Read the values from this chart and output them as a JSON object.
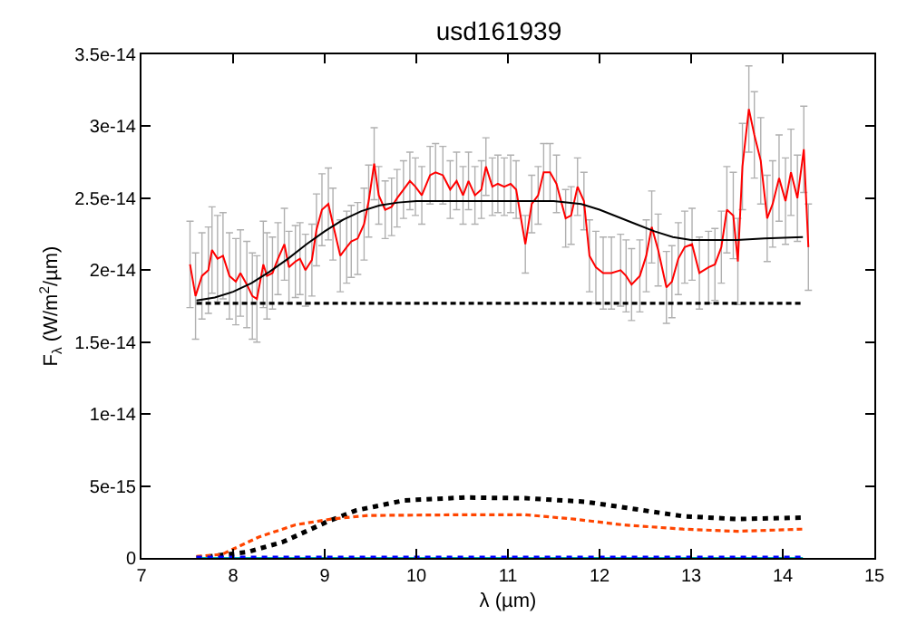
{
  "chart_data": {
    "type": "line",
    "title": "usd161939",
    "xlabel": "λ (µm)",
    "ylabel": "F$_{λ}$ (W/m$^{2}$/µm)",
    "xlim": [
      7,
      15
    ],
    "xticks": [
      7,
      8,
      9,
      10,
      11,
      12,
      13,
      14,
      15
    ],
    "ylim": [
      0,
      3.5e-14
    ],
    "yticks": [
      {
        "value": 0,
        "label": "0"
      },
      {
        "value": 5e-15,
        "label": "5e-15"
      },
      {
        "value": 1e-14,
        "label": "1e-14"
      },
      {
        "value": 1.5e-14,
        "label": "1.5e-14"
      },
      {
        "value": 2e-14,
        "label": "2e-14"
      },
      {
        "value": 2.5e-14,
        "label": "2.5e-14"
      },
      {
        "value": 3e-14,
        "label": "3e-14"
      },
      {
        "value": 3.5e-14,
        "label": "3.5e-14"
      }
    ],
    "marker": "none",
    "series": [
      {
        "color": "#ff0000",
        "line_style": "solid",
        "x": [
          7.53,
          7.59,
          7.66,
          7.73,
          7.77,
          7.83,
          7.89,
          7.96,
          8.03,
          8.08,
          8.15,
          8.21,
          8.26,
          8.33,
          8.37,
          8.43,
          8.49,
          8.56,
          8.61,
          8.68,
          8.73,
          8.79,
          8.86,
          8.91,
          8.97,
          9.04,
          9.09,
          9.17,
          9.24,
          9.29,
          9.36,
          9.43,
          9.48,
          9.54,
          9.59,
          9.66,
          9.73,
          9.79,
          9.86,
          9.93,
          9.99,
          10.06,
          10.15,
          10.21,
          10.29,
          10.37,
          10.44,
          10.51,
          10.57,
          10.64,
          10.71,
          10.76,
          10.83,
          10.89,
          10.96,
          11.03,
          11.09,
          11.19,
          11.26,
          11.33,
          11.39,
          11.46,
          11.53,
          11.63,
          11.69,
          11.76,
          11.83,
          11.89,
          11.96,
          12.04,
          12.13,
          12.23,
          12.29,
          12.35,
          12.44,
          12.51,
          12.57,
          12.64,
          12.73,
          12.79,
          12.86,
          12.93,
          13.01,
          13.09,
          13.19,
          13.26,
          13.33,
          13.39,
          13.46,
          13.51,
          13.56,
          13.63,
          13.69,
          13.76,
          13.83,
          13.89,
          13.96,
          14.03,
          14.09,
          14.16,
          14.23,
          14.28
        ],
        "values": [
          2.04e-14,
          1.82e-14,
          1.96e-14,
          2e-14,
          2.14e-14,
          2.08e-14,
          2.1e-14,
          1.96e-14,
          1.92e-14,
          1.98e-14,
          1.9e-14,
          1.82e-14,
          1.8e-14,
          2.04e-14,
          1.96e-14,
          1.98e-14,
          2.08e-14,
          2.18e-14,
          2.02e-14,
          2.06e-14,
          2.08e-14,
          2e-14,
          2.07e-14,
          2.28e-14,
          2.42e-14,
          2.46e-14,
          2.32e-14,
          2.1e-14,
          2.16e-14,
          2.2e-14,
          2.22e-14,
          2.32e-14,
          2.48e-14,
          2.74e-14,
          2.52e-14,
          2.42e-14,
          2.44e-14,
          2.5e-14,
          2.56e-14,
          2.62e-14,
          2.58e-14,
          2.52e-14,
          2.66e-14,
          2.68e-14,
          2.66e-14,
          2.56e-14,
          2.62e-14,
          2.52e-14,
          2.62e-14,
          2.52e-14,
          2.56e-14,
          2.72e-14,
          2.58e-14,
          2.6e-14,
          2.58e-14,
          2.6e-14,
          2.56e-14,
          2.18e-14,
          2.46e-14,
          2.52e-14,
          2.68e-14,
          2.68e-14,
          2.6e-14,
          2.36e-14,
          2.38e-14,
          2.58e-14,
          2.48e-14,
          2.1e-14,
          2.02e-14,
          1.98e-14,
          1.98e-14,
          2e-14,
          1.96e-14,
          1.9e-14,
          1.96e-14,
          2.1e-14,
          2.3e-14,
          2.14e-14,
          1.88e-14,
          1.92e-14,
          2.08e-14,
          2.16e-14,
          2.18e-14,
          1.98e-14,
          2.02e-14,
          2.04e-14,
          2.16e-14,
          2.42e-14,
          2.38e-14,
          2.06e-14,
          2.72e-14,
          3.12e-14,
          2.94e-14,
          2.76e-14,
          2.36e-14,
          2.46e-14,
          2.64e-14,
          2.48e-14,
          2.68e-14,
          2.5e-14,
          2.84e-14,
          2.16e-14
        ],
        "errors": [
          3e-15,
          3e-15,
          3e-15,
          3e-15,
          3e-15,
          3e-15,
          3e-15,
          3e-15,
          3e-15,
          3e-15,
          3e-15,
          3e-15,
          3e-15,
          3e-15,
          3e-15,
          2.5e-15,
          2.5e-15,
          2.5e-15,
          2.5e-15,
          2.5e-15,
          2.5e-15,
          2.5e-15,
          2.5e-15,
          2.5e-15,
          2.5e-15,
          2.5e-15,
          2.5e-15,
          2.5e-15,
          2.5e-15,
          2.5e-15,
          2.5e-15,
          2.5e-15,
          2.5e-15,
          2.5e-15,
          2e-15,
          2e-15,
          2e-15,
          2e-15,
          2e-15,
          2e-15,
          2e-15,
          2e-15,
          2e-15,
          2e-15,
          2e-15,
          2e-15,
          2e-15,
          2e-15,
          2e-15,
          2e-15,
          2e-15,
          2e-15,
          2e-15,
          2e-15,
          2e-15,
          2e-15,
          2e-15,
          2e-15,
          2e-15,
          2e-15,
          2e-15,
          2e-15,
          2e-15,
          2e-15,
          2e-15,
          2e-15,
          2e-15,
          2.5e-15,
          2.5e-15,
          2.5e-15,
          2.5e-15,
          2.5e-15,
          2.5e-15,
          2.5e-15,
          2.5e-15,
          2.5e-15,
          2.5e-15,
          2.5e-15,
          2.5e-15,
          2.5e-15,
          2.5e-15,
          2.5e-15,
          2.5e-15,
          2.5e-15,
          2.5e-15,
          2.5e-15,
          2.5e-15,
          3e-15,
          3e-15,
          3e-15,
          3e-15,
          3e-15,
          3e-15,
          3e-15,
          3e-15,
          3e-15,
          3e-15,
          3e-15,
          3e-15,
          3e-15,
          3e-15,
          3e-15
        ]
      },
      {
        "color": "#000000",
        "line_style": "solid",
        "x": [
          7.6,
          7.8,
          8.0,
          8.2,
          8.4,
          8.6,
          8.8,
          9.0,
          9.2,
          9.4,
          9.6,
          9.8,
          10.0,
          10.5,
          11.0,
          11.5,
          11.8,
          12.0,
          12.2,
          12.4,
          12.6,
          12.8,
          13.0,
          13.2,
          13.5,
          13.8,
          14.22
        ],
        "values": [
          1.79e-14,
          1.81e-14,
          1.85e-14,
          1.91e-14,
          1.99e-14,
          2.08e-14,
          2.18e-14,
          2.27e-14,
          2.35e-14,
          2.41e-14,
          2.45e-14,
          2.47e-14,
          2.48e-14,
          2.48e-14,
          2.48e-14,
          2.48e-14,
          2.46e-14,
          2.42e-14,
          2.37e-14,
          2.32e-14,
          2.27e-14,
          2.23e-14,
          2.21e-14,
          2.21e-14,
          2.21e-14,
          2.22e-14,
          2.23e-14
        ]
      },
      {
        "color": "#000000",
        "line_style": "dashed",
        "x": [
          7.6,
          14.22
        ],
        "values": [
          1.77e-14,
          1.77e-14
        ]
      },
      {
        "color": "#000000",
        "line_style": "dotted",
        "x": [
          7.6,
          8.15,
          8.54,
          9.02,
          9.34,
          9.87,
          10.53,
          11.19,
          11.85,
          12.38,
          12.91,
          13.5,
          14.22
        ],
        "values": [
          0,
          4e-16,
          1.1e-15,
          2.5e-15,
          3.3e-15,
          4e-15,
          4.2e-15,
          4.15e-15,
          3.9e-15,
          3.4e-15,
          2.9e-15,
          2.7e-15,
          2.8e-15
        ]
      },
      {
        "color": "#ff4500",
        "line_style": "dashed",
        "x": [
          7.6,
          7.88,
          8.28,
          8.68,
          9.07,
          9.47,
          10.53,
          11.19,
          11.72,
          12.25,
          12.91,
          13.5,
          14.22
        ],
        "values": [
          1e-16,
          2.5e-16,
          1.45e-15,
          2.3e-15,
          2.7e-15,
          2.95e-15,
          3e-15,
          3e-15,
          2.7e-15,
          2.3e-15,
          2e-15,
          1.85e-15,
          2e-15
        ]
      },
      {
        "color": "#00b0b0",
        "line_style": "solid",
        "x": [
          7.6,
          14.22
        ],
        "values": [
          0,
          0
        ]
      },
      {
        "color": "#0000ff",
        "line_style": "dotted",
        "x": [
          7.6,
          14.22
        ],
        "values": [
          0,
          0
        ]
      }
    ]
  }
}
